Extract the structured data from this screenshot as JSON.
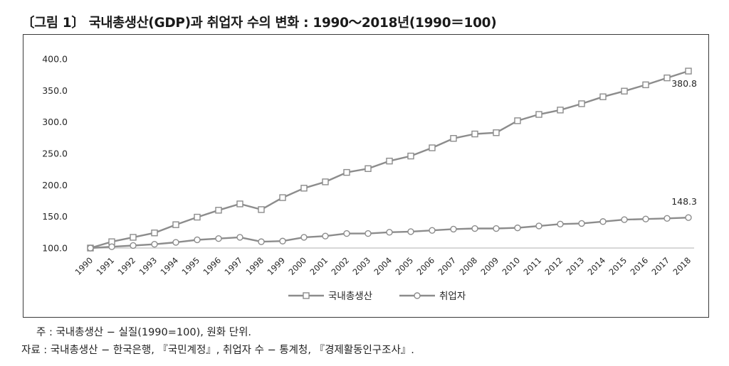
{
  "figure_title": "〔그림 1〕 국내총생산(GDP)과 취업자 수의 변화 : 1990～2018년(1990＝100)",
  "notes": [
    "주 : 국내총생산 − 실질(1990=100), 원화 단위.",
    "자료 : 국내총생산 − 한국은행, 『국민계정』, 취업자 수 − 통계청, 『경제활동인구조사』."
  ],
  "chart_data": {
    "type": "line",
    "title": "",
    "xlabel": "",
    "ylabel": "",
    "ylim": [
      100,
      400
    ],
    "yticks": [
      "100.0",
      "150.0",
      "200.0",
      "250.0",
      "300.0",
      "350.0",
      "400.0"
    ],
    "grid": false,
    "legend": "bottom-center",
    "categories": [
      "1990",
      "1991",
      "1992",
      "1993",
      "1994",
      "1995",
      "1996",
      "1997",
      "1998",
      "1999",
      "2000",
      "2001",
      "2002",
      "2003",
      "2004",
      "2005",
      "2006",
      "2007",
      "2008",
      "2009",
      "2010",
      "2011",
      "2012",
      "2013",
      "2014",
      "2015",
      "2016",
      "2017",
      "2018"
    ],
    "series": [
      {
        "name": "국내총생산",
        "marker": "square",
        "values": [
          100,
          110,
          117,
          124,
          137,
          149,
          160,
          170,
          161,
          180,
          195,
          205,
          220,
          226,
          238,
          246,
          259,
          274,
          281,
          283,
          302,
          312,
          319,
          329,
          340,
          349,
          359,
          370,
          380.8
        ],
        "end_label": "380.8"
      },
      {
        "name": "취업자",
        "marker": "circle",
        "values": [
          100,
          102,
          104,
          106,
          109,
          113,
          115,
          117,
          110,
          111,
          117,
          119,
          123,
          123,
          125,
          126,
          128,
          130,
          131,
          131,
          132,
          135,
          138,
          139,
          142,
          145,
          146,
          147,
          148.3
        ],
        "end_label": "148.3"
      }
    ],
    "colors": {
      "line": "#8c8c8c",
      "marker_fill": "#ffffff",
      "axis": "#bfbfbf",
      "text": "#262626"
    }
  }
}
